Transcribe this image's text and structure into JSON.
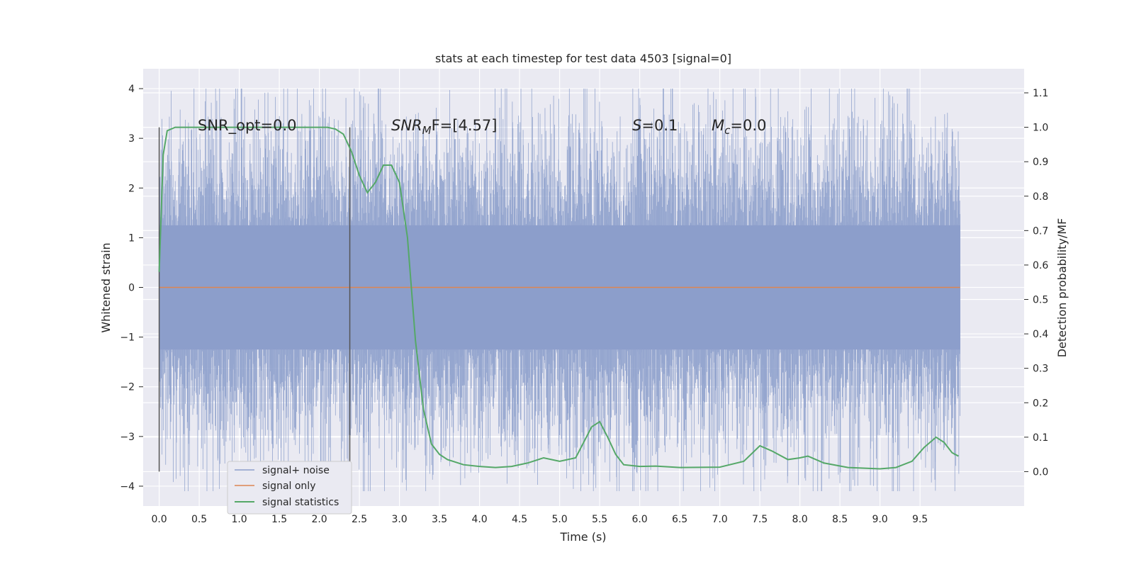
{
  "chart_data": {
    "type": "line",
    "title": "stats at each timestep for test data 4503 [signal=0]",
    "xlabel": "Time (s)",
    "ylabel": "Whitened strain",
    "y2label": "Detection probability/MF",
    "xlim": [
      -0.2,
      10.8
    ],
    "ylim": [
      -4.4,
      4.4
    ],
    "y2lim": [
      -0.1,
      1.17
    ],
    "xticks": [
      0.0,
      0.5,
      1.0,
      1.5,
      2.0,
      2.5,
      3.0,
      3.5,
      4.0,
      4.5,
      5.0,
      5.5,
      6.0,
      6.5,
      7.0,
      7.5,
      8.0,
      8.5,
      9.0,
      9.5
    ],
    "yticks": [
      -4,
      -3,
      -2,
      -1,
      0,
      1,
      2,
      3,
      4
    ],
    "y2ticks": [
      0.0,
      0.1,
      0.2,
      0.3,
      0.4,
      0.5,
      0.6,
      0.7,
      0.8,
      0.9,
      1.0,
      1.1
    ],
    "grid": true,
    "legend_position": "lower-left",
    "legend": [
      "signal+ noise",
      "signal only",
      "signal statistics"
    ],
    "colors": {
      "noise": "#8c9ecb",
      "signal_only": "#dd8452",
      "statistics": "#55a868",
      "marker_line": "#555555",
      "background": "#eaeaf2",
      "grid": "#ffffff"
    },
    "annotations": {
      "snr_opt": "SNR_opt=0.0",
      "snr_mf": "SNR",
      "snr_mf_sub": "M",
      "snr_mf_rest": "F=[4.57]",
      "s_var": "S",
      "s_rest": "=0.1",
      "mc_var": "M",
      "mc_sub": "c",
      "mc_rest": "=0.0"
    },
    "vertical_markers": [
      0.0,
      2.38
    ],
    "series": [
      {
        "name": "signal+ noise",
        "t_range": [
          0.0,
          10.0
        ],
        "typical_amplitude": 1.25,
        "y_min": -4.1,
        "y_max": 4.0
      },
      {
        "name": "signal only",
        "x": [
          0.0,
          10.0
        ],
        "y": [
          0.0,
          0.0
        ]
      },
      {
        "name": "signal statistics",
        "x": [
          0.0,
          0.05,
          0.1,
          0.2,
          0.4,
          0.8,
          1.2,
          1.6,
          2.0,
          2.1,
          2.2,
          2.3,
          2.4,
          2.5,
          2.6,
          2.7,
          2.8,
          2.9,
          3.0,
          3.1,
          3.2,
          3.3,
          3.4,
          3.5,
          3.6,
          3.8,
          4.0,
          4.2,
          4.4,
          4.6,
          4.8,
          5.0,
          5.2,
          5.4,
          5.5,
          5.6,
          5.7,
          5.8,
          6.0,
          6.2,
          6.5,
          7.0,
          7.3,
          7.5,
          7.65,
          7.85,
          8.0,
          8.1,
          8.3,
          8.6,
          9.0,
          9.2,
          9.4,
          9.55,
          9.7,
          9.8,
          9.9,
          9.98
        ],
        "y": [
          0.58,
          0.92,
          0.99,
          1.0,
          1.0,
          1.0,
          1.0,
          1.0,
          1.0,
          1.0,
          0.995,
          0.98,
          0.93,
          0.86,
          0.81,
          0.84,
          0.89,
          0.89,
          0.84,
          0.68,
          0.38,
          0.18,
          0.08,
          0.05,
          0.035,
          0.02,
          0.015,
          0.012,
          0.015,
          0.025,
          0.04,
          0.03,
          0.04,
          0.13,
          0.145,
          0.1,
          0.05,
          0.02,
          0.015,
          0.016,
          0.012,
          0.013,
          0.03,
          0.075,
          0.06,
          0.035,
          0.04,
          0.045,
          0.025,
          0.012,
          0.008,
          0.012,
          0.03,
          0.07,
          0.1,
          0.085,
          0.055,
          0.045
        ]
      }
    ]
  }
}
